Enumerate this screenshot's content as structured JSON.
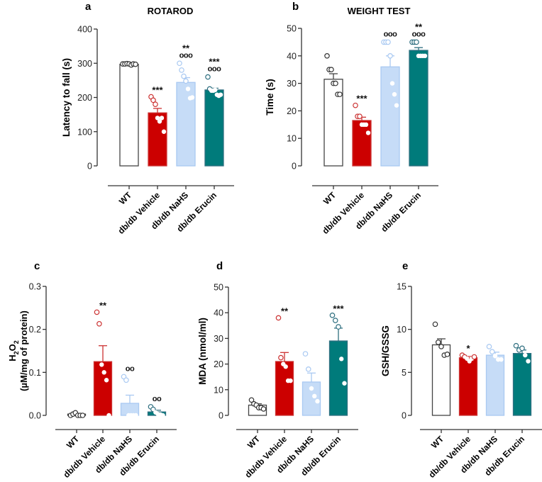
{
  "categories": [
    "WT",
    "db/db Vehicle",
    "db/db NaHS",
    "db/db Erucin"
  ],
  "group_colors": [
    {
      "fill": "#ffffff",
      "edge": "#333333"
    },
    {
      "fill": "#cc0000",
      "edge": "#cc3333"
    },
    {
      "fill": "#c6dcf7",
      "edge": "#a9c9f2"
    },
    {
      "fill": "#007b7b",
      "edge": "#2f6f80"
    }
  ],
  "chart_data": [
    {
      "type": "bar",
      "letter": "a",
      "title": "ROTAROD",
      "ylabel": "Latency to fall (s)",
      "ylabel2": "",
      "ylim": [
        0,
        400
      ],
      "yticks": [
        "0",
        "100",
        "200",
        "300",
        "400"
      ],
      "means": [
        297,
        155,
        244,
        222
      ],
      "sem": [
        2,
        13,
        14,
        5
      ],
      "points": [
        [
          298,
          298,
          299,
          298,
          295,
          298,
          297
        ],
        [
          202,
          192,
          180,
          140,
          130,
          140,
          100
        ],
        [
          300,
          280,
          262,
          248,
          225,
          198,
          200
        ],
        [
          260,
          225,
          220,
          220,
          222,
          208,
          205,
          208
        ]
      ],
      "stars": [
        "",
        "***",
        "**",
        "***"
      ],
      "circles": [
        "",
        "",
        "ooo",
        "ooo"
      ]
    },
    {
      "type": "bar",
      "letter": "b",
      "title": "WEIGHT TEST",
      "ylabel": "Time (s)",
      "ylabel2": "",
      "ylim": [
        0,
        50
      ],
      "yticks": [
        "0",
        "10",
        "20",
        "30",
        "40",
        "50"
      ],
      "means": [
        31.5,
        16.5,
        36,
        42
      ],
      "sem": [
        2,
        1.2,
        4,
        1
      ],
      "points": [
        [
          40,
          35,
          35,
          30,
          30,
          26,
          26
        ],
        [
          22,
          18,
          18,
          15,
          15,
          15,
          12
        ],
        [
          45,
          45,
          45,
          40,
          30,
          26,
          22
        ],
        [
          45,
          45,
          45,
          40,
          40,
          40,
          40
        ]
      ],
      "stars": [
        "",
        "***",
        "",
        "**"
      ],
      "circles": [
        "",
        "",
        "ooo",
        "ooo"
      ]
    },
    {
      "type": "bar",
      "letter": "c",
      "title": "",
      "ylabel": "H2O2",
      "ylabel2": "(µM/mg of protein)",
      "ylim": [
        0,
        0.3
      ],
      "yticks": [
        "0.0",
        "0.1",
        "0.2",
        "0.3"
      ],
      "means": [
        0.003,
        0.125,
        0.028,
        0.008
      ],
      "sem": [
        0.001,
        0.037,
        0.019,
        0.004
      ],
      "points": [
        [
          0,
          0.003,
          0.006,
          0,
          0,
          0
        ],
        [
          0.24,
          0.213,
          0.118,
          0.1,
          0.082,
          0
        ],
        [
          0.09,
          0.082,
          0,
          0,
          0,
          0
        ],
        [
          0.02,
          0.014,
          0.007,
          0.003,
          0.002,
          0
        ]
      ],
      "stars": [
        "",
        "**",
        "",
        ""
      ],
      "circles": [
        "",
        "",
        "oo",
        "oo"
      ]
    },
    {
      "type": "bar",
      "letter": "d",
      "title": "",
      "ylabel": "MDA (nmol/ml)",
      "ylabel2": "",
      "ylim": [
        0,
        50
      ],
      "yticks": [
        "0",
        "10",
        "20",
        "30",
        "40",
        "50"
      ],
      "means": [
        4,
        21,
        13,
        29
      ],
      "sem": [
        0.5,
        3.5,
        3.5,
        5
      ],
      "points": [
        [
          6,
          4.5,
          4,
          3,
          3,
          2.5
        ],
        [
          38,
          22.5,
          20,
          19,
          13.5,
          13.5
        ],
        [
          24,
          18,
          10.5,
          7.5,
          5.5
        ],
        [
          39,
          37,
          34.5,
          22,
          12.5
        ]
      ],
      "stars": [
        "",
        "**",
        "",
        "***"
      ],
      "circles": [
        "",
        "",
        "",
        ""
      ]
    },
    {
      "type": "bar",
      "letter": "e",
      "title": "",
      "ylabel": "GSH/GSSG",
      "ylabel2": "",
      "ylim": [
        0,
        15
      ],
      "yticks": [
        "0",
        "5",
        "10",
        "15"
      ],
      "means": [
        8.2,
        6.7,
        7,
        7.2
      ],
      "sem": [
        0.7,
        0.15,
        0.35,
        0.4
      ],
      "points": [
        [
          10.6,
          8.5,
          8,
          7,
          7.1
        ],
        [
          7,
          6.8,
          6.6,
          6.3,
          6.6,
          6.8
        ],
        [
          8,
          7.4,
          6.9,
          6.5,
          6.5
        ],
        [
          8.1,
          7.6,
          7.8,
          7,
          6.3
        ]
      ],
      "stars": [
        "",
        "*",
        "",
        ""
      ],
      "circles": [
        "",
        "",
        "",
        ""
      ]
    }
  ]
}
